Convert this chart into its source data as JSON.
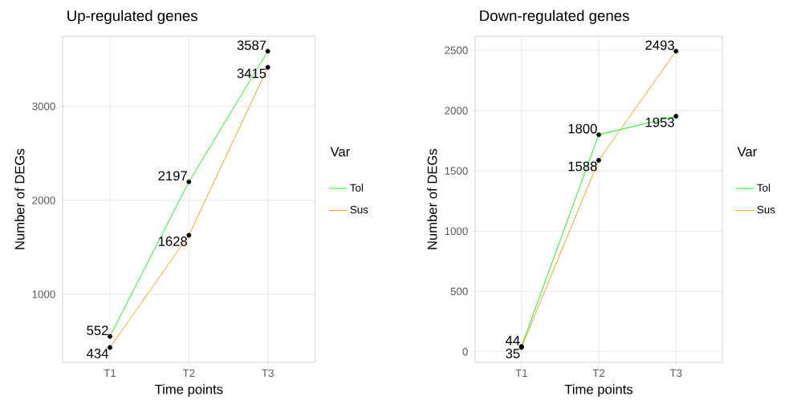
{
  "chart_data": [
    {
      "type": "line",
      "title": "Up-regulated genes",
      "xlabel": "Time points",
      "ylabel": "Number of DEGs",
      "legend_title": "Var",
      "categories": [
        "T1",
        "T2",
        "T3"
      ],
      "series": [
        {
          "name": "Tol",
          "color": "#00ff00",
          "values": [
            552,
            2197,
            3587
          ]
        },
        {
          "name": "Sus",
          "color": "#ff9900",
          "values": [
            434,
            1628,
            3415
          ]
        }
      ],
      "ylim": [
        276,
        3745
      ],
      "yticks": [
        1000,
        2000,
        3000
      ],
      "grid": true,
      "legend": "right",
      "marker": "circle",
      "data_labels": true
    },
    {
      "type": "line",
      "title": "Down-regulated genes",
      "xlabel": "Time points",
      "ylabel": "Number of DEGs",
      "legend_title": "Var",
      "categories": [
        "T1",
        "T2",
        "T3"
      ],
      "series": [
        {
          "name": "Tol",
          "color": "#00ff00",
          "values": [
            44,
            1800,
            1953
          ]
        },
        {
          "name": "Sus",
          "color": "#ff9900",
          "values": [
            35,
            1588,
            2493
          ]
        }
      ],
      "ylim": [
        -88,
        2616
      ],
      "yticks": [
        0,
        500,
        1000,
        1500,
        2000,
        2500
      ],
      "grid": true,
      "legend": "right",
      "marker": "circle",
      "data_labels": true
    }
  ]
}
